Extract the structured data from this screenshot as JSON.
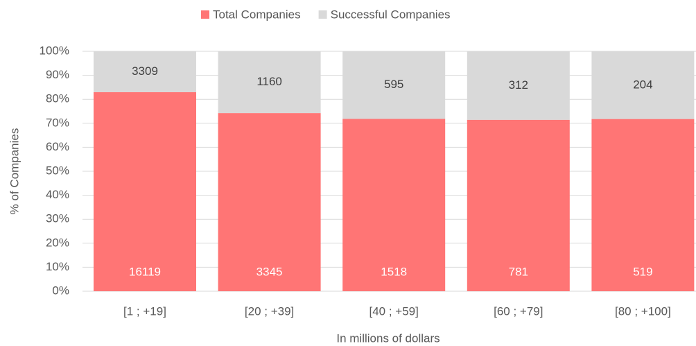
{
  "chart_data": {
    "type": "bar",
    "stacking": "percent",
    "x_label": "In millions of dollars",
    "y_label": "% of Companies",
    "categories": [
      "[1 ; +19]",
      "[20 ; +39]",
      "[40 ; +59]",
      "[60 ; +79]",
      "[80 ; +100]"
    ],
    "series": [
      {
        "name": "Total Companies",
        "color": "#ff7575",
        "label_color": "#ffffff",
        "values": [
          16119,
          3345,
          1518,
          781,
          519
        ]
      },
      {
        "name": "Successful Companies",
        "color": "#d9d9d9",
        "label_color": "#404040",
        "values": [
          3309,
          1160,
          595,
          312,
          204
        ]
      }
    ],
    "ylim": [
      0,
      100
    ],
    "yticks": [
      {
        "value": 0,
        "label": "0%"
      },
      {
        "value": 10,
        "label": "10%"
      },
      {
        "value": 20,
        "label": "20%"
      },
      {
        "value": 30,
        "label": "30%"
      },
      {
        "value": 40,
        "label": "40%"
      },
      {
        "value": 50,
        "label": "50%"
      },
      {
        "value": 60,
        "label": "60%"
      },
      {
        "value": 70,
        "label": "70%"
      },
      {
        "value": 80,
        "label": "80%"
      },
      {
        "value": 90,
        "label": "90%"
      },
      {
        "value": 100,
        "label": "100%"
      }
    ],
    "grid": true,
    "legend": "top"
  }
}
